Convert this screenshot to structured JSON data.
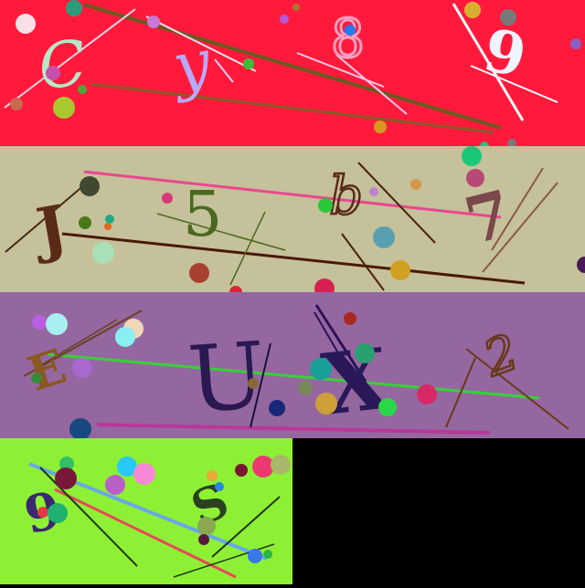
{
  "panels": [
    {
      "id": "panel-1",
      "background": "#ff1a3c",
      "characters": [
        "C",
        "y",
        "8",
        "9"
      ]
    },
    {
      "id": "panel-2",
      "background": "#c5c19a",
      "characters": [
        "J",
        "5",
        "b",
        "7"
      ]
    },
    {
      "id": "panel-3",
      "background": "#9567a0",
      "characters": [
        "E",
        "U",
        "X",
        "2"
      ]
    },
    {
      "id": "panel-4",
      "background": "#8ef034",
      "characters": [
        "9",
        "S"
      ]
    }
  ],
  "empty_area_color": "#000000"
}
